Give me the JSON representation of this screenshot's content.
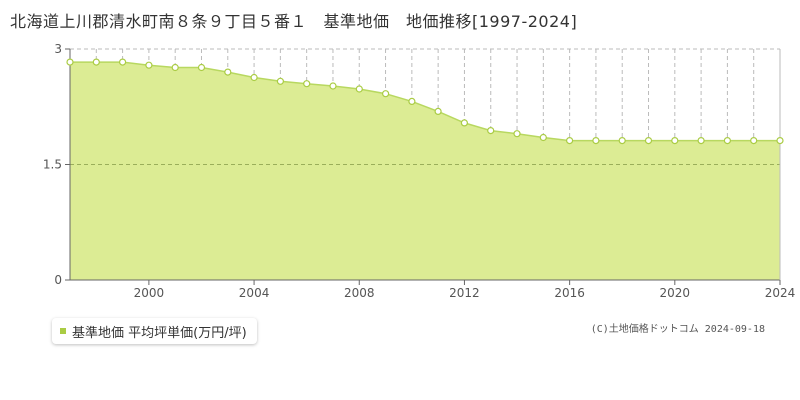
{
  "title": "北海道上川郡清水町南８条９丁目５番１　基準地価　地価推移[1997-2024]",
  "legend_label": "基準地価 平均坪単価(万円/坪)",
  "copyright": "(C)土地価格ドットコム 2024-09-18",
  "colors": {
    "area_fill": "#dcec94",
    "line": "#b8d860",
    "marker": "#aacc44",
    "grid": "#bbbbbb"
  },
  "chart_data": {
    "type": "area",
    "title": "北海道上川郡清水町南８条９丁目５番１　基準地価　地価推移[1997-2024]",
    "x": [
      1997,
      1998,
      1999,
      2000,
      2001,
      2002,
      2003,
      2004,
      2005,
      2006,
      2007,
      2008,
      2009,
      2010,
      2011,
      2012,
      2013,
      2014,
      2015,
      2016,
      2017,
      2018,
      2019,
      2020,
      2021,
      2022,
      2023,
      2024
    ],
    "series": [
      {
        "name": "基準地価 平均坪単価(万円/坪)",
        "values": [
          2.83,
          2.83,
          2.83,
          2.79,
          2.76,
          2.76,
          2.7,
          2.63,
          2.58,
          2.55,
          2.52,
          2.48,
          2.42,
          2.32,
          2.19,
          2.04,
          1.94,
          1.9,
          1.85,
          1.81,
          1.81,
          1.81,
          1.81,
          1.81,
          1.81,
          1.81,
          1.81,
          1.81
        ]
      }
    ],
    "xlim": [
      1997,
      2024
    ],
    "ylim": [
      0,
      3
    ],
    "x_tick_labels": [
      "2000",
      "2004",
      "2008",
      "2012",
      "2016",
      "2020",
      "2024"
    ],
    "y_tick_labels": [
      "0",
      "1.5",
      "3"
    ],
    "xlabel": "",
    "ylabel": "",
    "grid": true,
    "legend_position": "bottom-left"
  }
}
